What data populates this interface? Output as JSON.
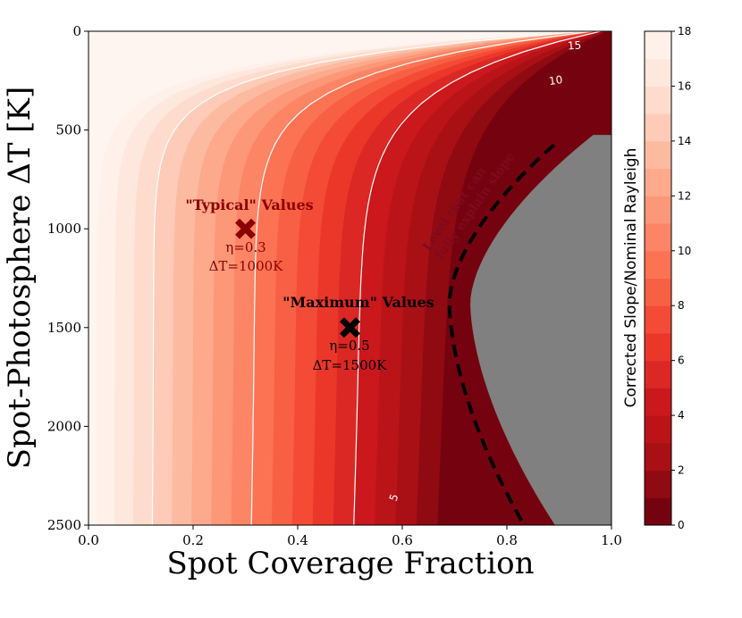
{
  "chart_data": {
    "type": "contour",
    "xlabel": "Spot Coverage Fraction",
    "ylabel": "Spot-Photosphere ΔT [K]",
    "xlim": [
      0.0,
      1.0
    ],
    "ylim": [
      2500,
      0
    ],
    "x_ticks": [
      "0.0",
      "0.2",
      "0.4",
      "0.6",
      "0.8",
      "1.0"
    ],
    "y_ticks": [
      "0",
      "500",
      "1000",
      "1500",
      "2000",
      "2500"
    ],
    "colorbar": {
      "label": "Corrected Slope/Nominal Rayleigh",
      "range": [
        0,
        18
      ],
      "levels": 18,
      "ticks": [
        "0",
        "2",
        "4",
        "6",
        "8",
        "10",
        "12",
        "14",
        "16",
        "18"
      ],
      "colormap": "Reds"
    },
    "contour_lines": [
      {
        "level": 5,
        "label": "5"
      },
      {
        "level": 10,
        "label": "10"
      },
      {
        "level": 15,
        "label": "15"
      }
    ],
    "threshold_curve": {
      "label_line1": "Level that can",
      "label_line2": "fully explain slope",
      "style": "dashed"
    },
    "masked_region_color": "#808080",
    "markers": [
      {
        "name": "typical",
        "x": 0.3,
        "y": 1000,
        "color": "#8b0000",
        "title": "\"Typical\" Values",
        "line1": "η=0.3",
        "line2": "ΔT=1000K"
      },
      {
        "name": "maximum",
        "x": 0.5,
        "y": 1500,
        "color": "#000000",
        "title": "\"Maximum\" Values",
        "line1": "η=0.5",
        "line2": "ΔT=1500K"
      }
    ]
  }
}
